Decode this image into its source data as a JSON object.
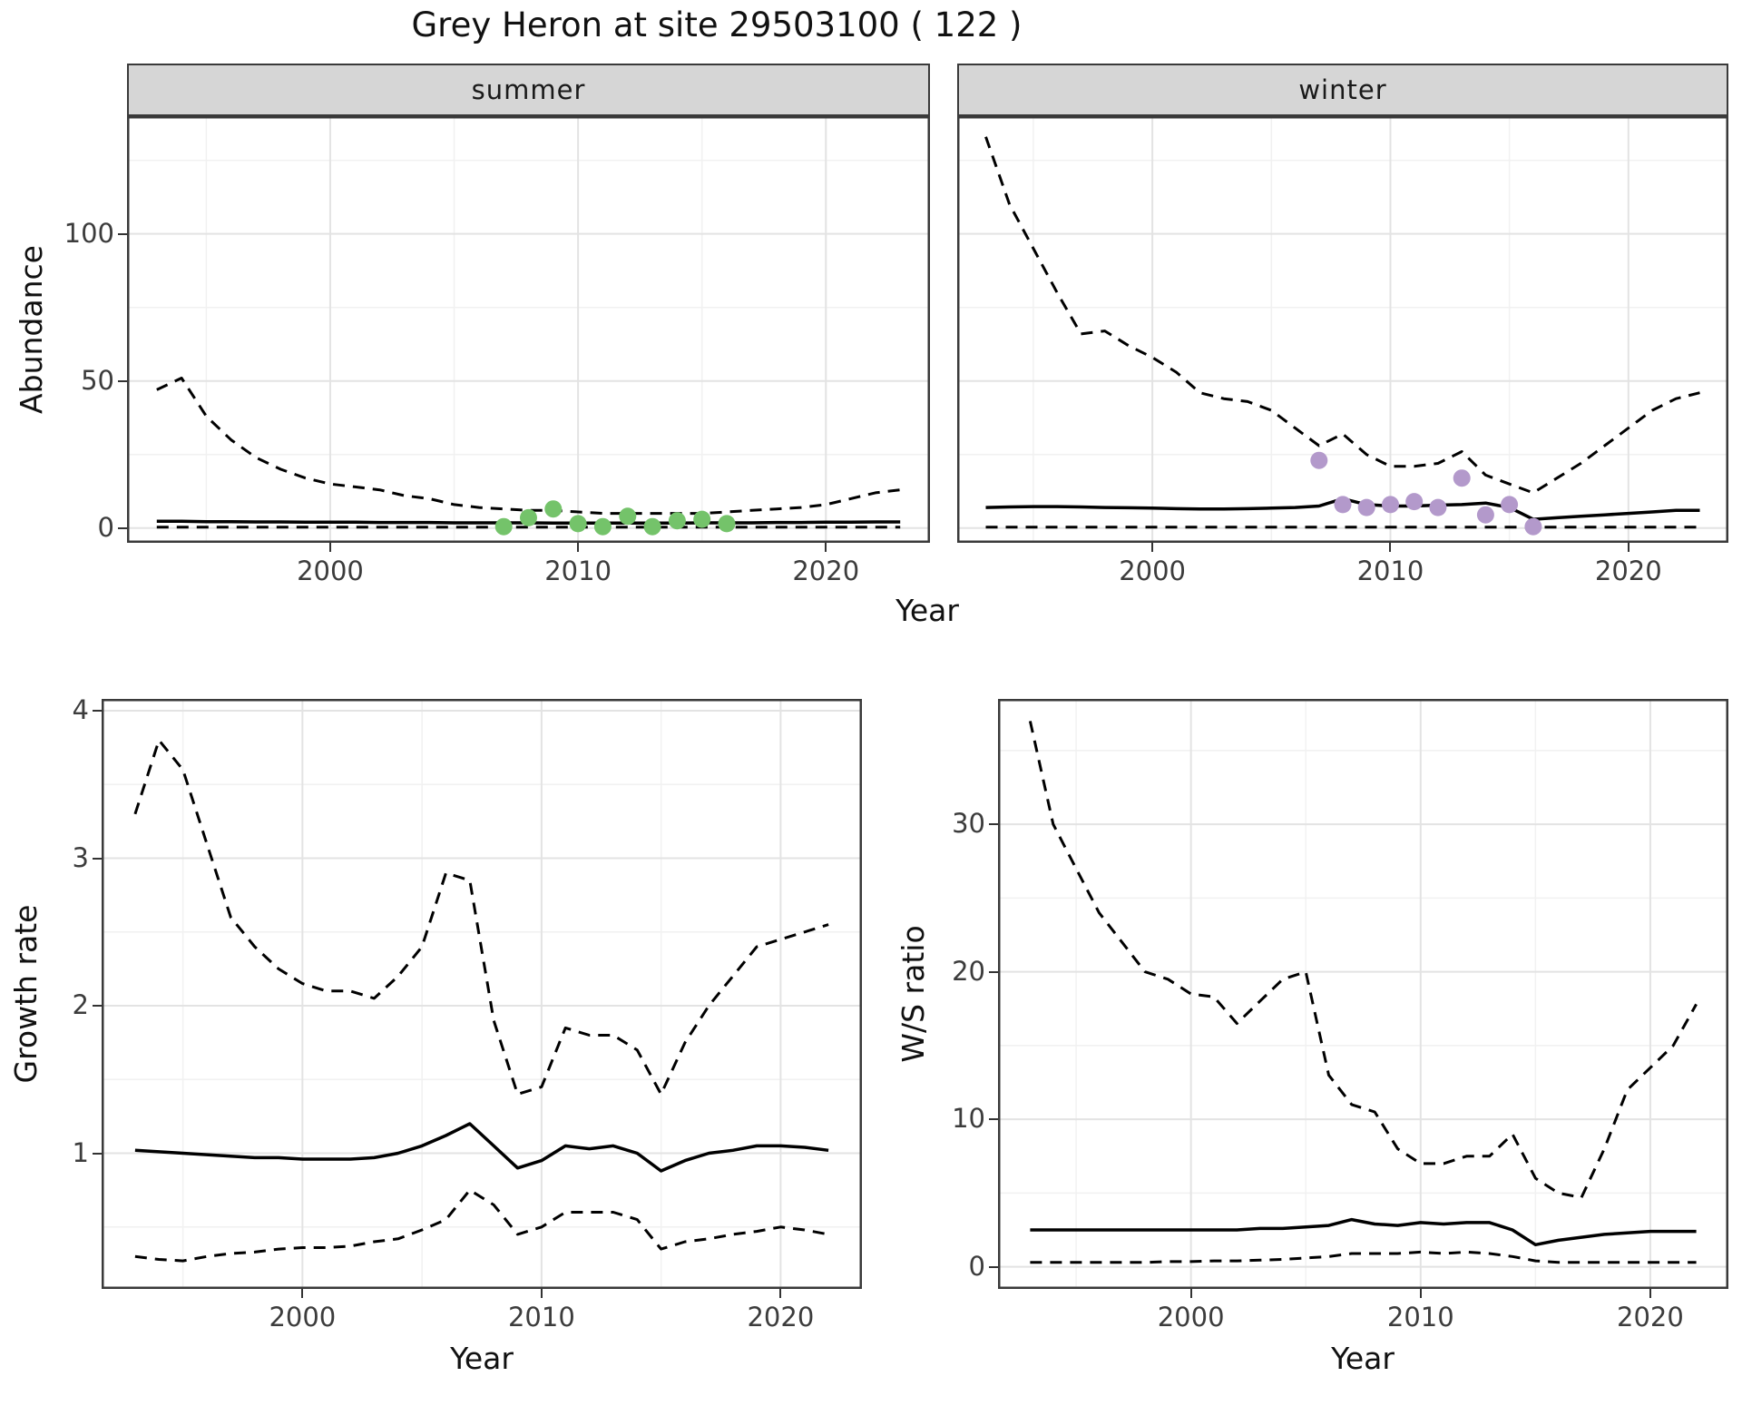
{
  "title": "Grey Heron at site 29503100 ( 122 )",
  "labels": {
    "year": "Year"
  },
  "colors": {
    "line": "#000000",
    "grid_major": "#e3e3e3",
    "grid_minor": "#f1f1f1",
    "panel_border": "#3a3a3a",
    "strip_bg": "#d6d6d6",
    "summer_points": "#74c36a",
    "winter_points": "#b399cb"
  },
  "chart_data": [
    {
      "id": "abundance-summer",
      "type": "line",
      "facet_label": "summer",
      "xlabel": "Year",
      "ylabel": "Abundance",
      "xlim": [
        1991.8,
        2024.2
      ],
      "ylim": [
        -5,
        140
      ],
      "xticks": [
        2000,
        2010,
        2020
      ],
      "xminor": [
        1995,
        2005,
        2015
      ],
      "yticks": [
        0,
        50,
        100
      ],
      "yminor": [
        25,
        75,
        125
      ],
      "show_y_tick_labels": true,
      "x": [
        1993,
        1994,
        1995,
        1996,
        1997,
        1998,
        1999,
        2000,
        2001,
        2002,
        2003,
        2004,
        2005,
        2006,
        2007,
        2008,
        2009,
        2010,
        2011,
        2012,
        2013,
        2014,
        2015,
        2016,
        2017,
        2018,
        2019,
        2020,
        2021,
        2022,
        2023
      ],
      "series": [
        {
          "name": "upper-ci",
          "style": "dashed",
          "values": [
            47,
            51,
            38,
            30,
            24,
            20,
            17,
            15,
            14,
            13,
            11,
            10,
            8,
            7,
            6.5,
            6,
            6,
            5.5,
            5,
            5,
            5,
            5,
            5,
            5.5,
            6,
            6.5,
            7,
            8,
            10,
            12,
            13
          ]
        },
        {
          "name": "estimate",
          "style": "solid",
          "values": [
            2.3,
            2.3,
            2.2,
            2.2,
            2.1,
            2.1,
            2.0,
            2.0,
            2.0,
            1.9,
            1.9,
            1.9,
            1.8,
            1.8,
            1.8,
            1.8,
            1.7,
            1.7,
            1.7,
            1.7,
            1.7,
            1.7,
            1.8,
            1.8,
            1.8,
            1.9,
            1.9,
            2.0,
            2.0,
            2.1,
            2.1
          ]
        },
        {
          "name": "lower-ci",
          "style": "dashed",
          "values": [
            0.3,
            0.3,
            0.3,
            0.3,
            0.3,
            0.3,
            0.3,
            0.3,
            0.3,
            0.3,
            0.3,
            0.3,
            0.3,
            0.3,
            0.3,
            0.3,
            0.3,
            0.3,
            0.3,
            0.3,
            0.3,
            0.3,
            0.3,
            0.3,
            0.3,
            0.3,
            0.3,
            0.3,
            0.3,
            0.3,
            0.3
          ]
        }
      ],
      "points": {
        "name": "observed-counts",
        "color": "#74c36a",
        "x": [
          2007,
          2008,
          2009,
          2010,
          2011,
          2012,
          2013,
          2014,
          2015,
          2016
        ],
        "y": [
          0.5,
          3.5,
          6.5,
          1.5,
          0.5,
          4,
          0.5,
          2.5,
          3,
          1.5
        ]
      }
    },
    {
      "id": "abundance-winter",
      "type": "line",
      "facet_label": "winter",
      "xlabel": "Year",
      "ylabel": "Abundance",
      "xlim": [
        1991.8,
        2024.2
      ],
      "ylim": [
        -5,
        140
      ],
      "xticks": [
        2000,
        2010,
        2020
      ],
      "xminor": [
        1995,
        2005,
        2015
      ],
      "yticks": [
        0,
        50,
        100
      ],
      "yminor": [
        25,
        75,
        125
      ],
      "show_y_tick_labels": false,
      "x": [
        1993,
        1994,
        1995,
        1996,
        1997,
        1998,
        1999,
        2000,
        2001,
        2002,
        2003,
        2004,
        2005,
        2006,
        2007,
        2008,
        2009,
        2010,
        2011,
        2012,
        2013,
        2014,
        2015,
        2016,
        2017,
        2018,
        2019,
        2020,
        2021,
        2022,
        2023
      ],
      "series": [
        {
          "name": "upper-ci",
          "style": "dashed",
          "values": [
            133,
            110,
            95,
            80,
            66,
            67,
            62,
            58,
            53,
            46,
            44,
            43,
            40,
            34,
            28,
            32,
            25,
            21,
            21,
            22,
            26,
            18,
            15,
            12,
            17,
            22,
            28,
            34,
            40,
            44,
            46
          ]
        },
        {
          "name": "estimate",
          "style": "solid",
          "values": [
            7,
            7.2,
            7.3,
            7.3,
            7.2,
            7,
            6.9,
            6.8,
            6.6,
            6.5,
            6.5,
            6.6,
            6.8,
            7,
            7.5,
            10,
            8,
            7.5,
            7.5,
            7.8,
            8,
            8.5,
            7,
            3,
            3.5,
            4,
            4.5,
            5,
            5.5,
            6,
            6
          ]
        },
        {
          "name": "lower-ci",
          "style": "dashed",
          "values": [
            0.3,
            0.3,
            0.3,
            0.3,
            0.3,
            0.3,
            0.3,
            0.3,
            0.3,
            0.3,
            0.3,
            0.3,
            0.3,
            0.3,
            0.3,
            0.3,
            0.3,
            0.3,
            0.3,
            0.3,
            0.3,
            0.3,
            0.3,
            0.3,
            0.3,
            0.3,
            0.3,
            0.3,
            0.3,
            0.3,
            0.3
          ]
        }
      ],
      "points": {
        "name": "observed-counts",
        "color": "#b399cb",
        "x": [
          2007,
          2008,
          2009,
          2010,
          2011,
          2012,
          2013,
          2014,
          2015,
          2016
        ],
        "y": [
          23,
          8,
          7,
          8,
          9,
          7,
          17,
          4.5,
          8,
          0.5
        ]
      }
    },
    {
      "id": "growth-rate",
      "type": "line",
      "facet_label": "",
      "xlabel": "Year",
      "ylabel": "Growth rate",
      "xlim": [
        1991.6,
        2023.4
      ],
      "ylim": [
        0.08,
        4.08
      ],
      "xticks": [
        2000,
        2010,
        2020
      ],
      "xminor": [
        1995,
        2005,
        2015
      ],
      "yticks": [
        1,
        2,
        3,
        4
      ],
      "yminor": [
        0.5,
        1.5,
        2.5,
        3.5
      ],
      "show_y_tick_labels": true,
      "x": [
        1993,
        1994,
        1995,
        1996,
        1997,
        1998,
        1999,
        2000,
        2001,
        2002,
        2003,
        2004,
        2005,
        2006,
        2007,
        2008,
        2009,
        2010,
        2011,
        2012,
        2013,
        2014,
        2015,
        2016,
        2017,
        2018,
        2019,
        2020,
        2021,
        2022
      ],
      "series": [
        {
          "name": "upper-ci",
          "style": "dashed",
          "values": [
            3.3,
            3.8,
            3.6,
            3.1,
            2.6,
            2.4,
            2.25,
            2.15,
            2.1,
            2.1,
            2.05,
            2.2,
            2.4,
            2.9,
            2.85,
            1.9,
            1.4,
            1.45,
            1.85,
            1.8,
            1.8,
            1.7,
            1.4,
            1.75,
            2.0,
            2.2,
            2.4,
            2.45,
            2.5,
            2.55
          ]
        },
        {
          "name": "estimate",
          "style": "solid",
          "values": [
            1.02,
            1.01,
            1.0,
            0.99,
            0.98,
            0.97,
            0.97,
            0.96,
            0.96,
            0.96,
            0.97,
            1.0,
            1.05,
            1.12,
            1.2,
            1.05,
            0.9,
            0.95,
            1.05,
            1.03,
            1.05,
            1.0,
            0.88,
            0.95,
            1.0,
            1.02,
            1.05,
            1.05,
            1.04,
            1.02
          ]
        },
        {
          "name": "lower-ci",
          "style": "dashed",
          "values": [
            0.3,
            0.28,
            0.27,
            0.3,
            0.32,
            0.33,
            0.35,
            0.36,
            0.36,
            0.37,
            0.4,
            0.42,
            0.48,
            0.55,
            0.75,
            0.65,
            0.45,
            0.5,
            0.6,
            0.6,
            0.6,
            0.55,
            0.35,
            0.4,
            0.42,
            0.45,
            0.47,
            0.5,
            0.48,
            0.45
          ]
        }
      ]
    },
    {
      "id": "ws-ratio",
      "type": "line",
      "facet_label": "",
      "xlabel": "Year",
      "ylabel": "W/S ratio",
      "xlim": [
        1991.6,
        2023.4
      ],
      "ylim": [
        -1.5,
        38.5
      ],
      "xticks": [
        2000,
        2010,
        2020
      ],
      "xminor": [
        1995,
        2005,
        2015
      ],
      "yticks": [
        0,
        10,
        20,
        30
      ],
      "yminor": [
        5,
        15,
        25,
        35
      ],
      "show_y_tick_labels": true,
      "x": [
        1993,
        1994,
        1995,
        1996,
        1997,
        1998,
        1999,
        2000,
        2001,
        2002,
        2003,
        2004,
        2005,
        2006,
        2007,
        2008,
        2009,
        2010,
        2011,
        2012,
        2013,
        2014,
        2015,
        2016,
        2017,
        2018,
        2019,
        2020,
        2021,
        2022
      ],
      "series": [
        {
          "name": "upper-ci",
          "style": "dashed",
          "values": [
            37,
            30,
            27,
            24,
            22,
            20,
            19.5,
            18.5,
            18.3,
            16.5,
            18,
            19.5,
            20,
            13,
            11,
            10.5,
            8,
            7,
            7,
            7.5,
            7.5,
            9,
            6,
            5,
            4.7,
            8,
            12,
            13.5,
            15,
            17.8
          ]
        },
        {
          "name": "estimate",
          "style": "solid",
          "values": [
            2.5,
            2.5,
            2.5,
            2.5,
            2.5,
            2.5,
            2.5,
            2.5,
            2.5,
            2.5,
            2.6,
            2.6,
            2.7,
            2.8,
            3.2,
            2.9,
            2.8,
            3.0,
            2.9,
            3.0,
            3.0,
            2.5,
            1.5,
            1.8,
            2.0,
            2.2,
            2.3,
            2.4,
            2.4,
            2.4
          ]
        },
        {
          "name": "lower-ci",
          "style": "dashed",
          "values": [
            0.3,
            0.3,
            0.3,
            0.3,
            0.3,
            0.3,
            0.35,
            0.35,
            0.4,
            0.4,
            0.45,
            0.5,
            0.6,
            0.7,
            0.9,
            0.9,
            0.9,
            1.0,
            0.9,
            1.0,
            0.9,
            0.7,
            0.4,
            0.3,
            0.3,
            0.3,
            0.3,
            0.3,
            0.3,
            0.3
          ]
        }
      ]
    }
  ]
}
